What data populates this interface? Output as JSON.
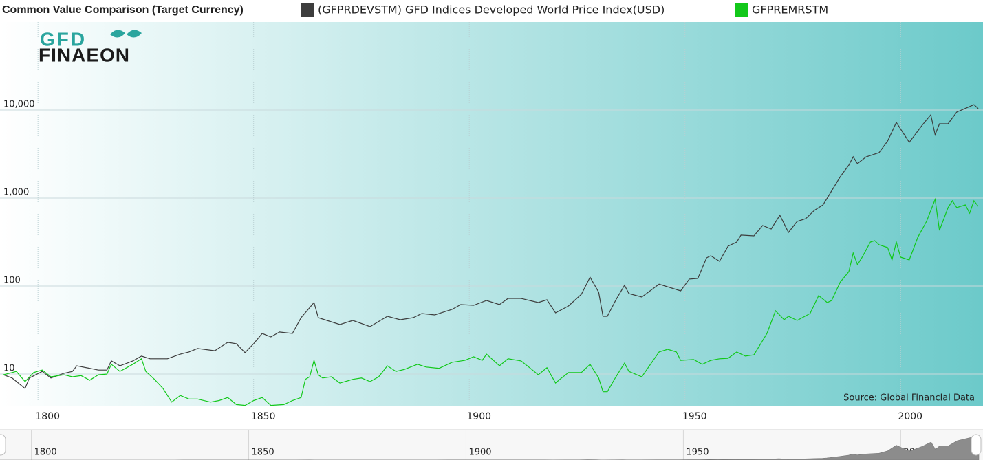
{
  "logo": {
    "top": "GFD",
    "bottom": "FINAEON"
  },
  "chart_data": {
    "type": "line",
    "title": "Common Value Comparison (Target Currency)",
    "credit": "Source: Global Financial Data",
    "log_scale": true,
    "grid": true,
    "xlim": [
      1791.2,
      2019.1
    ],
    "xticks": [
      1800,
      1850,
      1900,
      1950,
      2000
    ],
    "ylim": [
      4.37,
      100000
    ],
    "yticks": [
      10,
      100,
      {
        "value": 1000,
        "label": "1,000"
      },
      {
        "value": 10000,
        "label": "10,000"
      }
    ],
    "series": [
      {
        "name": "(GFPRDEVSTM) GFD Indices Developed World Price Index(USD)",
        "color": "#3d3d3d",
        "x": [
          1792,
          1794,
          1797,
          1798,
          1801,
          1803,
          1806,
          1808,
          1809,
          1814,
          1816,
          1817,
          1819,
          1822,
          1824,
          1826,
          1830,
          1833,
          1835,
          1837,
          1841,
          1844,
          1846,
          1848,
          1850,
          1852,
          1854,
          1856,
          1859,
          1861,
          1864,
          1865,
          1868,
          1870,
          1873,
          1877,
          1881,
          1884,
          1887,
          1889,
          1892,
          1896,
          1898,
          1901,
          1904,
          1907,
          1909,
          1912,
          1916,
          1918,
          1920,
          1923,
          1926,
          1928,
          1930,
          1931,
          1932,
          1934,
          1936,
          1937,
          1940,
          1944,
          1949,
          1951,
          1953,
          1955,
          1956,
          1958,
          1960,
          1962,
          1963,
          1966,
          1968,
          1970,
          1972,
          1974,
          1976,
          1978,
          1980,
          1982,
          1983,
          1986,
          1988,
          1989,
          1990,
          1992,
          1995,
          1997,
          1999,
          2002,
          2005,
          2007,
          2008,
          2009,
          2011,
          2013,
          2017,
          2018
        ],
        "values": [
          9.8,
          9.0,
          6.85,
          9.0,
          10.7,
          9.0,
          10.2,
          10.7,
          12.4,
          11.1,
          11.1,
          14.1,
          12.4,
          14.1,
          16.0,
          14.9,
          14.9,
          16.8,
          17.8,
          19.5,
          18.4,
          22.9,
          22.1,
          17.5,
          22.1,
          28.9,
          26.4,
          30,
          28.9,
          43.7,
          64.9,
          43.7,
          39.2,
          36.5,
          40.7,
          34.6,
          45.3,
          41.4,
          43.7,
          48.7,
          47,
          54.2,
          61.5,
          60.4,
          68.5,
          61.5,
          72.3,
          72.3,
          64.9,
          69.8,
          49.6,
          59.3,
          80.6,
          126,
          85.1,
          45.3,
          45.3,
          69.8,
          102,
          82,
          75,
          105,
          88.1,
          120,
          122,
          209,
          221,
          191,
          284,
          316,
          379,
          372,
          487,
          445,
          638,
          407,
          542,
          583,
          723,
          835,
          1000,
          1750,
          2370,
          2940,
          2460,
          2940,
          3280,
          4450,
          7230,
          4290,
          6730,
          8810,
          5230,
          6980,
          6980,
          9480,
          11500,
          10400
        ]
      },
      {
        "name": "GFPREMRSTM",
        "color": "#12c81a",
        "x": [
          1792,
          1795,
          1797,
          1799,
          1801,
          1803,
          1806,
          1808,
          1810,
          1812,
          1814,
          1816,
          1817,
          1819,
          1822,
          1824,
          1825,
          1827,
          1829,
          1831,
          1833,
          1835,
          1837,
          1840,
          1842,
          1844,
          1846,
          1848,
          1850,
          1852,
          1854,
          1857,
          1859,
          1861,
          1862,
          1863,
          1864,
          1865,
          1866,
          1868,
          1870,
          1873,
          1875,
          1877,
          1879,
          1881,
          1883,
          1885,
          1888,
          1890,
          1893,
          1896,
          1899,
          1901,
          1903,
          1904,
          1907,
          1909,
          1912,
          1914,
          1916,
          1918,
          1920,
          1921,
          1923,
          1926,
          1928,
          1930,
          1931,
          1932,
          1934,
          1936,
          1937,
          1940,
          1942,
          1944,
          1946,
          1948,
          1949,
          1952,
          1954,
          1956,
          1958,
          1960,
          1962,
          1964,
          1966,
          1969,
          1971,
          1973,
          1974,
          1976,
          1979,
          1981,
          1983,
          1984,
          1986,
          1988,
          1989,
          1990,
          1991,
          1993,
          1994,
          1995,
          1997,
          1998,
          1999,
          2000,
          2002,
          2004,
          2006,
          2008,
          2009,
          2011,
          2012,
          2013,
          2015,
          2016,
          2017,
          2018
        ],
        "values": [
          9.8,
          10.7,
          8.2,
          10.4,
          11.1,
          9.3,
          9.8,
          9.3,
          9.6,
          8.5,
          9.8,
          10,
          12.9,
          10.7,
          12.9,
          14.9,
          10.7,
          8.7,
          6.85,
          4.8,
          5.7,
          5.2,
          5.2,
          4.8,
          5.0,
          5.4,
          4.5,
          4.4,
          5.0,
          5.4,
          4.4,
          4.5,
          5.0,
          5.4,
          8.7,
          9.3,
          14.3,
          9.8,
          9.0,
          9.3,
          7.9,
          8.7,
          9.0,
          8.2,
          9.3,
          12.4,
          10.7,
          11.3,
          12.9,
          12.0,
          11.6,
          13.6,
          14.3,
          15.7,
          14.3,
          16.8,
          12.4,
          14.9,
          14.1,
          11.8,
          9.8,
          11.8,
          7.9,
          8.7,
          10.4,
          10.4,
          12.9,
          9.0,
          6.3,
          6.3,
          9.3,
          13.3,
          10.7,
          9.3,
          12.9,
          17.8,
          19.1,
          17.8,
          14.3,
          14.6,
          12.9,
          14.3,
          14.9,
          15.1,
          17.8,
          16.0,
          16.5,
          28.9,
          52.3,
          41.4,
          45.3,
          40.7,
          48.7,
          77.8,
          64.9,
          68.5,
          111,
          146,
          237,
          175,
          209,
          316,
          328,
          294,
          274,
          198,
          316,
          213,
          198,
          359,
          542,
          964,
          429,
          778,
          931,
          778,
          835,
          673,
          931,
          806
        ]
      }
    ]
  }
}
